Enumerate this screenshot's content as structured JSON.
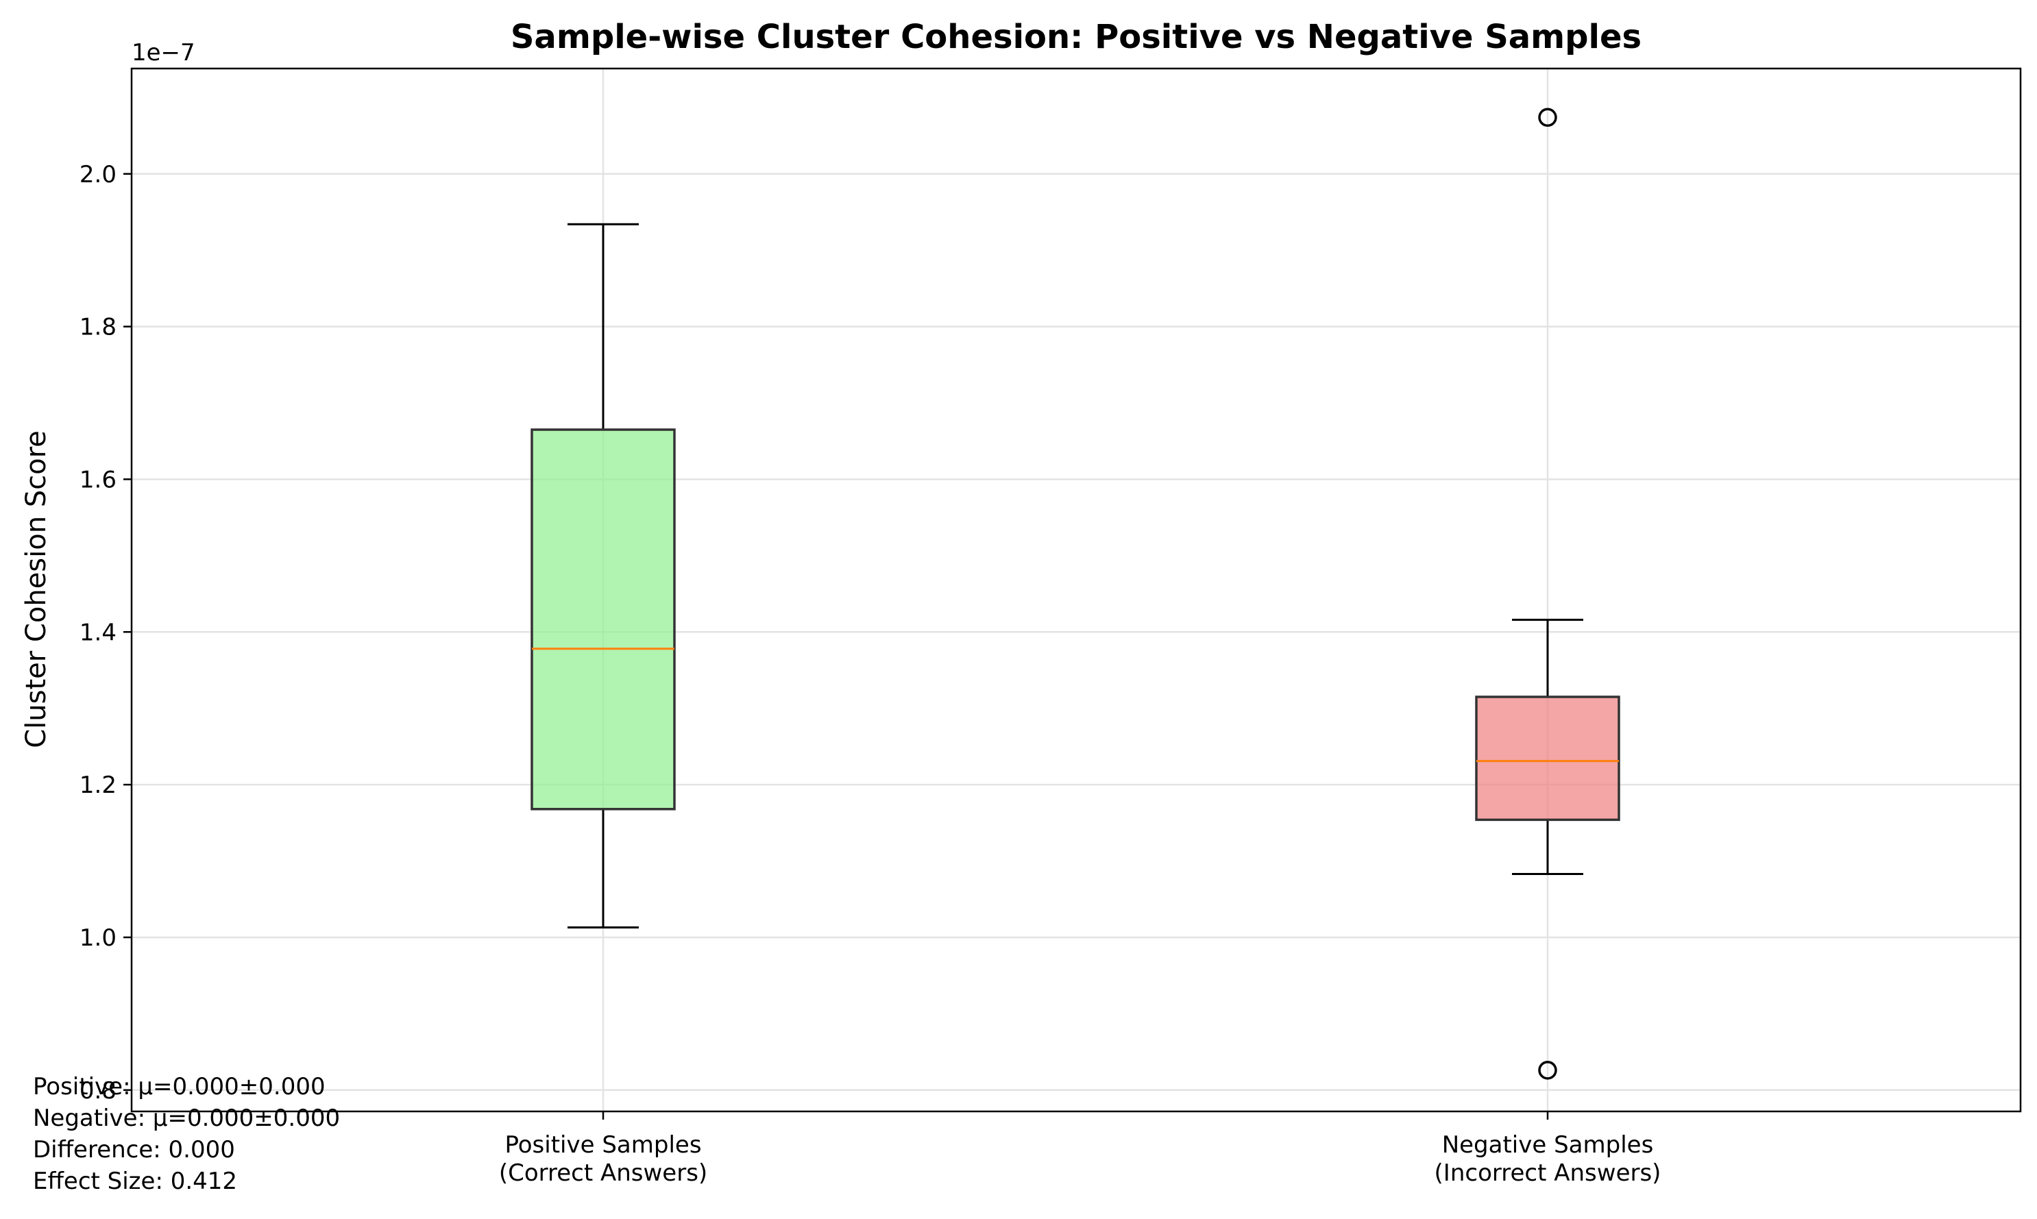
{
  "chart_data": {
    "type": "box",
    "title": "Sample-wise Cluster Cohesion: Positive vs Negative Samples",
    "xlabel": "",
    "ylabel": "Cluster Cohesion Score",
    "y_offset_label": "1e−7",
    "ylim": [
      0.772,
      2.138
    ],
    "yticks": [
      0.8,
      1.0,
      1.2,
      1.4,
      1.6,
      1.8,
      2.0
    ],
    "ytick_labels": [
      "0.8",
      "1.0",
      "1.2",
      "1.4",
      "1.6",
      "1.8",
      "2.0"
    ],
    "grid": true,
    "categories": [
      {
        "line1": "Positive Samples",
        "line2": "(Correct Answers)"
      },
      {
        "line1": "Negative Samples",
        "line2": "(Incorrect Answers)"
      }
    ],
    "boxes": [
      {
        "whisker_low": 1.013,
        "q1": 1.168,
        "median": 1.378,
        "q3": 1.665,
        "whisker_high": 1.934,
        "outliers": [],
        "color": "#90ee90"
      },
      {
        "whisker_low": 1.083,
        "q1": 1.154,
        "median": 1.231,
        "q3": 1.315,
        "whisker_high": 1.416,
        "outliers": [
          0.826,
          2.074
        ],
        "color": "#f08080"
      }
    ],
    "median_color": "#ff7f0e"
  },
  "stats_text": {
    "positive": "Positive: μ=0.000±0.000",
    "negative": "Negative: μ=0.000±0.000",
    "difference": "Difference: 0.000",
    "effect_size": "Effect Size: 0.412"
  }
}
